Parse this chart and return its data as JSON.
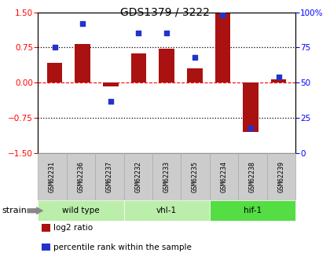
{
  "title": "GDS1379 / 3222",
  "samples": [
    "GSM62231",
    "GSM62236",
    "GSM62237",
    "GSM62232",
    "GSM62233",
    "GSM62235",
    "GSM62234",
    "GSM62238",
    "GSM62239"
  ],
  "log2_ratio": [
    0.42,
    0.82,
    -0.08,
    0.62,
    0.73,
    0.3,
    1.48,
    -1.05,
    0.07
  ],
  "percentile_rank": [
    75,
    92,
    37,
    85,
    85,
    68,
    98,
    18,
    54
  ],
  "groups": [
    {
      "label": "wild type",
      "start": 0,
      "end": 3,
      "color": "#bbeeaa"
    },
    {
      "label": "vhl-1",
      "start": 3,
      "end": 6,
      "color": "#bbeeaa"
    },
    {
      "label": "hif-1",
      "start": 6,
      "end": 9,
      "color": "#55dd44"
    }
  ],
  "bar_color": "#aa1111",
  "dot_color": "#2233cc",
  "ylim_left": [
    -1.5,
    1.5
  ],
  "ylim_right": [
    0,
    100
  ],
  "yticks_left": [
    -1.5,
    -0.75,
    0,
    0.75,
    1.5
  ],
  "yticks_right": [
    0,
    25,
    50,
    75,
    100
  ],
  "sample_bg_color": "#cccccc",
  "sample_border_color": "#aaaaaa",
  "strain_label": "strain",
  "legend_items": [
    {
      "label": "log2 ratio",
      "color": "#aa1111"
    },
    {
      "label": "percentile rank within the sample",
      "color": "#2233cc"
    }
  ]
}
